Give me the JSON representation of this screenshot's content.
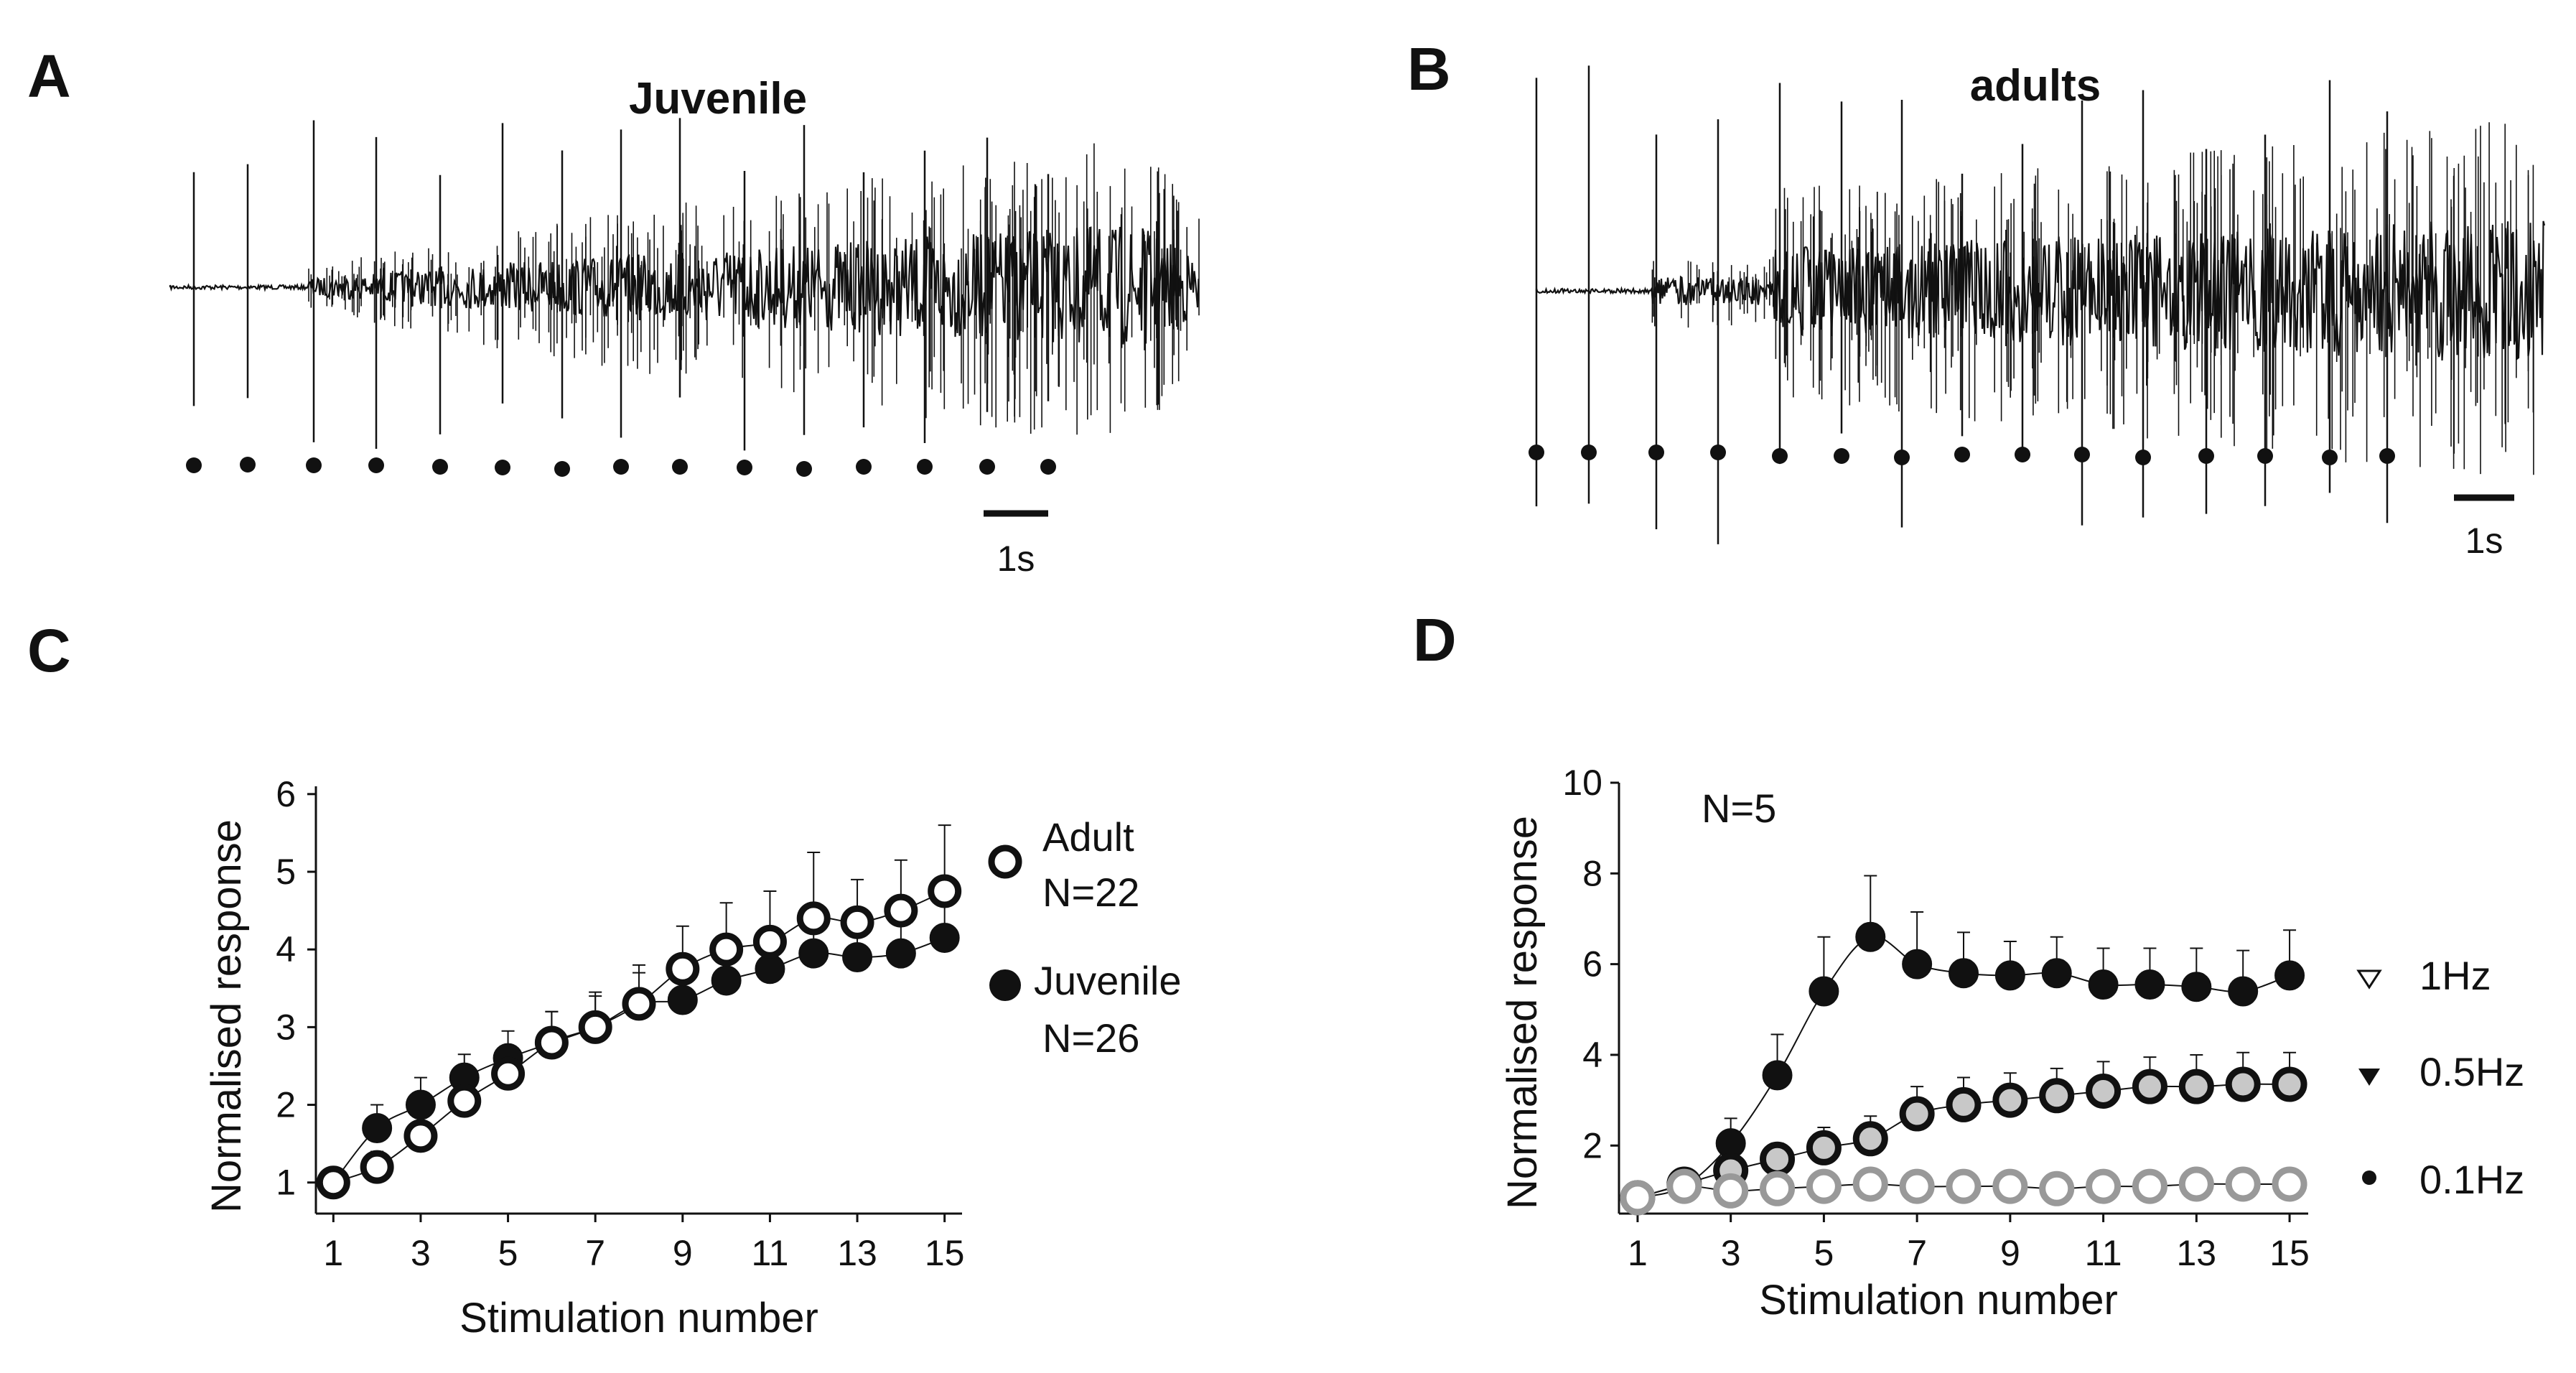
{
  "panels": {
    "A": {
      "letter": "A",
      "title": "Juvenile",
      "scale_bar_label": "1s",
      "stimulus_count": 15
    },
    "B": {
      "letter": "B",
      "title": "adults",
      "scale_bar_label": "1s",
      "stimulus_count": 15
    },
    "C": {
      "letter": "C"
    },
    "D": {
      "letter": "D"
    }
  },
  "chart_data": [
    {
      "panel": "C",
      "type": "line",
      "xlabel": "Stimulation number",
      "ylabel": "Normalised response",
      "xlim": [
        0.6,
        15.4
      ],
      "ylim": [
        0.6,
        6.1
      ],
      "xticks": [
        1,
        3,
        5,
        7,
        9,
        11,
        13,
        15
      ],
      "yticks": [
        1,
        2,
        3,
        4,
        5,
        6
      ],
      "x": [
        1,
        2,
        3,
        4,
        5,
        6,
        7,
        8,
        9,
        10,
        11,
        12,
        13,
        14,
        15
      ],
      "series": [
        {
          "name": "Juvenile",
          "n_label": "N=26",
          "marker": "filled",
          "values": [
            1.0,
            1.7,
            2.0,
            2.35,
            2.6,
            2.8,
            3.0,
            3.3,
            3.35,
            3.6,
            3.75,
            3.95,
            3.9,
            3.95,
            4.15
          ],
          "errors": [
            0.1,
            0.3,
            0.35,
            0.3,
            0.35,
            0.4,
            0.4,
            0.4,
            0.45,
            0.45,
            0.5,
            0.5,
            0.5,
            0.55,
            0.55
          ]
        },
        {
          "name": "Adult",
          "n_label": "N=22",
          "marker": "open",
          "values": [
            1.0,
            1.2,
            1.6,
            2.05,
            2.4,
            2.8,
            3.0,
            3.3,
            3.75,
            4.0,
            4.1,
            4.4,
            4.35,
            4.5,
            4.75
          ],
          "errors": [
            0.1,
            0.2,
            0.25,
            0.3,
            0.35,
            0.4,
            0.45,
            0.5,
            0.55,
            0.6,
            0.65,
            0.85,
            0.55,
            0.65,
            0.85
          ]
        }
      ],
      "legend": [
        {
          "label": "Adult",
          "n_label": "N=22",
          "marker": "open"
        },
        {
          "label": "Juvenile",
          "n_label": "N=26",
          "marker": "filled"
        }
      ]
    },
    {
      "panel": "D",
      "type": "line",
      "note": "N=5",
      "xlabel": "Stimulation number",
      "ylabel": "Normalised response",
      "xlim": [
        0.6,
        15.4
      ],
      "ylim": [
        0.5,
        10
      ],
      "xticks": [
        1,
        3,
        5,
        7,
        9,
        11,
        13,
        15
      ],
      "yticks": [
        2,
        4,
        6,
        8,
        10
      ],
      "x": [
        1,
        2,
        3,
        4,
        5,
        6,
        7,
        8,
        9,
        10,
        11,
        12,
        13,
        14,
        15
      ],
      "series": [
        {
          "name": "0.1Hz",
          "marker": "black",
          "values": [
            0.85,
            1.1,
            2.05,
            3.55,
            5.4,
            6.6,
            6.0,
            5.8,
            5.75,
            5.8,
            5.55,
            5.55,
            5.5,
            5.4,
            5.75
          ],
          "errors": [
            0.1,
            0.2,
            0.55,
            0.9,
            1.2,
            1.35,
            1.15,
            0.9,
            0.75,
            0.8,
            0.8,
            0.8,
            0.85,
            0.9,
            1.0
          ]
        },
        {
          "name": "0.5Hz",
          "marker": "gray",
          "values": [
            0.85,
            1.15,
            1.45,
            1.7,
            1.95,
            2.15,
            2.7,
            2.9,
            3.0,
            3.1,
            3.2,
            3.3,
            3.3,
            3.35,
            3.35
          ],
          "errors": [
            0.1,
            0.2,
            0.25,
            0.35,
            0.45,
            0.5,
            0.6,
            0.6,
            0.6,
            0.6,
            0.65,
            0.65,
            0.7,
            0.7,
            0.7
          ]
        },
        {
          "name": "1Hz",
          "marker": "open",
          "values": [
            0.85,
            1.1,
            1.0,
            1.05,
            1.1,
            1.15,
            1.1,
            1.1,
            1.1,
            1.05,
            1.1,
            1.1,
            1.15,
            1.15,
            1.15
          ],
          "errors": [
            0.05,
            0.1,
            0.1,
            0.1,
            0.1,
            0.1,
            0.1,
            0.1,
            0.1,
            0.1,
            0.1,
            0.1,
            0.1,
            0.1,
            0.1
          ]
        }
      ],
      "legend": [
        {
          "label": "1Hz",
          "marker": "open-triangle"
        },
        {
          "label": "0.5Hz",
          "marker": "filled-triangle"
        },
        {
          "label": "0.1Hz",
          "marker": "dot"
        }
      ]
    }
  ]
}
